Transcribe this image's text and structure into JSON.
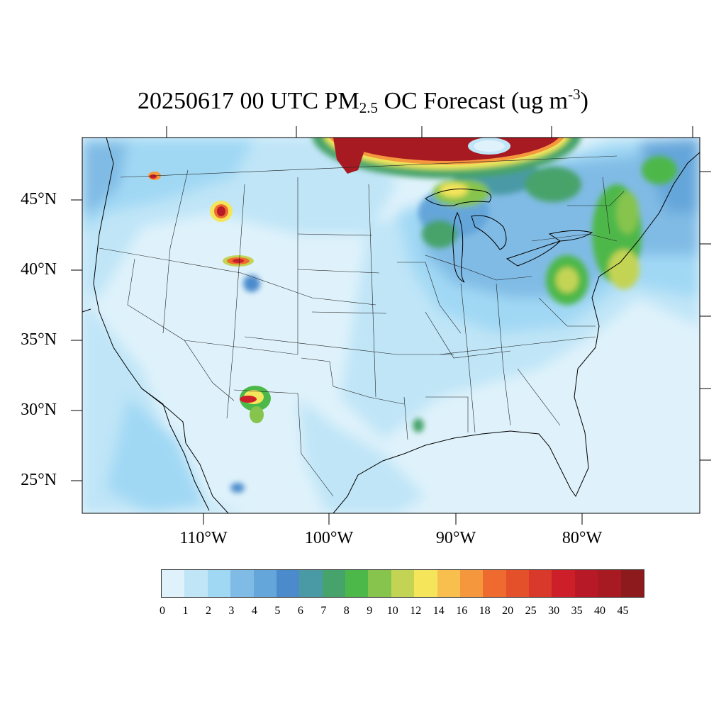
{
  "title": {
    "prefix": "20250617 00 UTC PM",
    "sub": "2.5",
    "middle": " OC Forecast (ug m",
    "sup": "-3",
    "suffix": ")"
  },
  "lat_labels": [
    "45°N",
    "40°N",
    "35°N",
    "30°N",
    "25°N"
  ],
  "lon_labels": [
    "110°W",
    "100°W",
    "90°W",
    "80°W"
  ],
  "colorbar": {
    "colors": [
      "#dff2fb",
      "#bfe5f7",
      "#a0d8f4",
      "#80bbe5",
      "#65a6da",
      "#4b8bcc",
      "#4a9aa6",
      "#46a36b",
      "#4db84a",
      "#86c44d",
      "#c3d455",
      "#f4e55b",
      "#f8bf4f",
      "#f5973d",
      "#ee6a2e",
      "#e3502a",
      "#d9392a",
      "#cc1f2a",
      "#b71a26",
      "#a81a22",
      "#8d1a1c"
    ],
    "labels": [
      "0",
      "1",
      "2",
      "3",
      "4",
      "5",
      "6",
      "7",
      "8",
      "9",
      "10",
      "12",
      "14",
      "16",
      "18",
      "20",
      "25",
      "30",
      "35",
      "40",
      "45"
    ]
  },
  "map_data": {
    "extent": {
      "lon": [
        -120,
        -71
      ],
      "lat": [
        22.5,
        49.5
      ]
    },
    "hotspots": [
      {
        "name": "canada-plume",
        "lon": -93,
        "lat": 49.3,
        "value": 45
      },
      {
        "name": "montana-fire",
        "lon": -112.5,
        "lat": 44.3,
        "value": 40
      },
      {
        "name": "wyoming-fire",
        "lon": -108,
        "lat": 40.6,
        "value": 30
      },
      {
        "name": "new-mexico-fire",
        "lon": -106.3,
        "lat": 30.8,
        "value": 35
      },
      {
        "name": "washington-fire",
        "lon": -116.5,
        "lat": 46.6,
        "value": 20
      },
      {
        "name": "michigan-north",
        "lon": -90,
        "lat": 46.2,
        "value": 14
      },
      {
        "name": "mid-atlantic",
        "lon": -80,
        "lat": 39.5,
        "value": 12
      },
      {
        "name": "northeast",
        "lon": -74.5,
        "lat": 42.5,
        "value": 12
      }
    ]
  }
}
